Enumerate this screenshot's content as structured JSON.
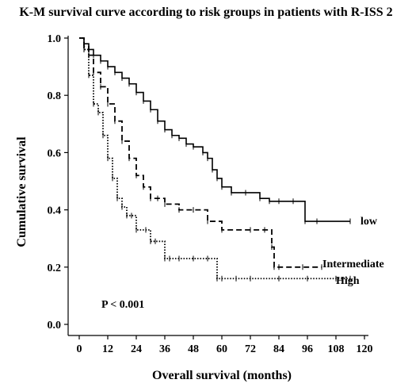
{
  "chart_data": {
    "type": "line",
    "title": "K-M survival curve according to risk groups in patients with R-ISS 2",
    "xlabel": "Overall survival (months)",
    "ylabel": "Cumulative survival",
    "xlim": [
      0,
      120
    ],
    "ylim": [
      0,
      1.0
    ],
    "xticks": [
      "0",
      "12",
      "24",
      "36",
      "48",
      "60",
      "72",
      "84",
      "96",
      "108",
      "120"
    ],
    "yticks": [
      "0.0",
      "0.2",
      "0.4",
      "0.6",
      "0.8",
      "1.0"
    ],
    "grid": false,
    "annotation": "P < 0.001",
    "series": [
      {
        "name": "low",
        "style": "solid",
        "x": [
          0,
          2,
          4,
          6,
          9,
          12,
          15,
          18,
          21,
          24,
          27,
          30,
          33,
          36,
          39,
          42,
          45,
          48,
          52,
          54,
          56,
          58,
          60,
          64,
          70,
          76,
          80,
          84,
          90,
          95,
          100,
          114
        ],
        "y": [
          1.0,
          0.98,
          0.96,
          0.94,
          0.92,
          0.9,
          0.88,
          0.86,
          0.84,
          0.81,
          0.78,
          0.75,
          0.71,
          0.68,
          0.66,
          0.65,
          0.63,
          0.62,
          0.6,
          0.58,
          0.54,
          0.51,
          0.48,
          0.46,
          0.46,
          0.44,
          0.43,
          0.43,
          0.43,
          0.36,
          0.36,
          0.36
        ]
      },
      {
        "name": "Intermediate",
        "style": "dashed",
        "x": [
          0,
          2,
          4,
          6,
          9,
          12,
          15,
          18,
          21,
          24,
          27,
          30,
          33,
          36,
          42,
          48,
          54,
          60,
          72,
          78,
          81,
          82,
          84,
          94,
          102
        ],
        "y": [
          1.0,
          0.97,
          0.94,
          0.88,
          0.83,
          0.77,
          0.71,
          0.64,
          0.58,
          0.52,
          0.48,
          0.44,
          0.44,
          0.42,
          0.4,
          0.4,
          0.36,
          0.33,
          0.33,
          0.33,
          0.27,
          0.2,
          0.2,
          0.2,
          0.2
        ]
      },
      {
        "name": "High",
        "style": "dotted",
        "x": [
          0,
          2,
          4,
          6,
          8,
          10,
          12,
          14,
          16,
          18,
          20,
          22,
          24,
          28,
          30,
          32,
          36,
          38,
          42,
          48,
          54,
          58,
          60,
          66,
          72,
          84,
          96,
          108,
          114
        ],
        "y": [
          1.0,
          0.96,
          0.87,
          0.77,
          0.74,
          0.66,
          0.58,
          0.51,
          0.44,
          0.41,
          0.38,
          0.38,
          0.33,
          0.33,
          0.29,
          0.29,
          0.23,
          0.23,
          0.23,
          0.23,
          0.23,
          0.16,
          0.16,
          0.16,
          0.16,
          0.16,
          0.16,
          0.16,
          0.16
        ]
      }
    ]
  }
}
